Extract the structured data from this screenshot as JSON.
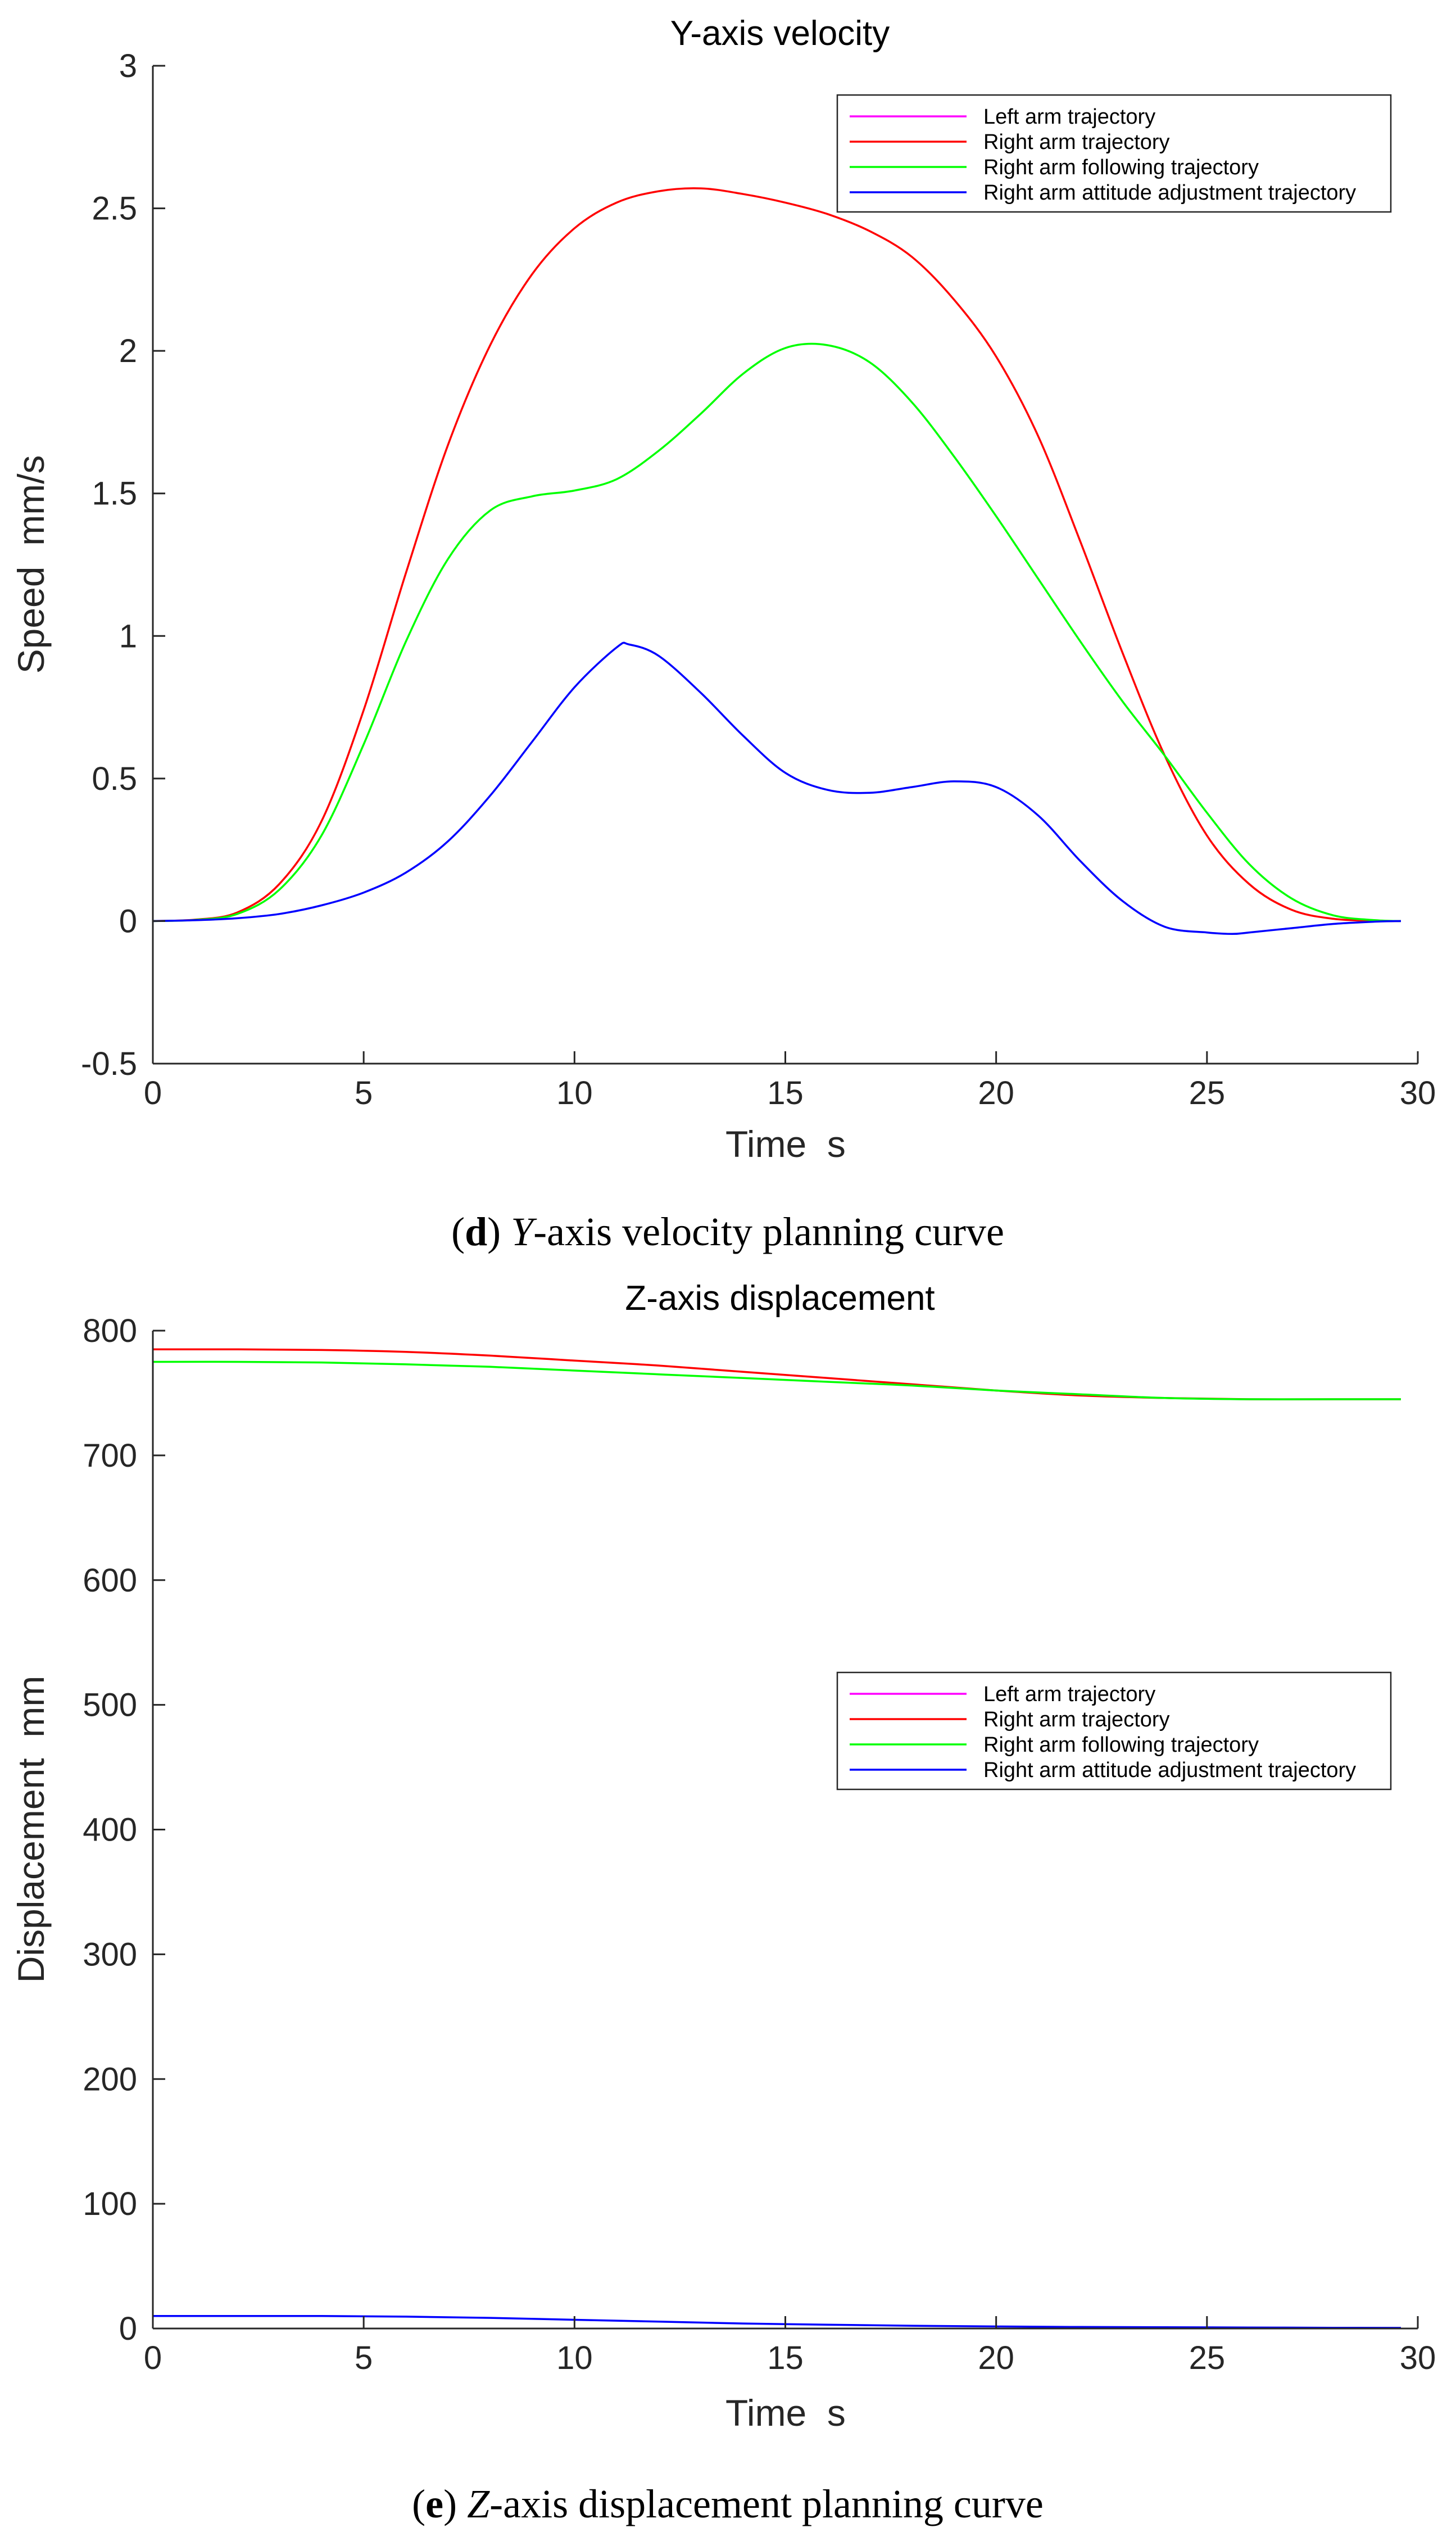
{
  "chart_data": [
    {
      "type": "line",
      "title": "Y-axis velocity",
      "xlabel": "Time  s",
      "ylabel": "Speed  mm/s",
      "xlim": [
        0,
        30
      ],
      "ylim": [
        -0.5,
        3
      ],
      "xticks": [
        "0",
        "5",
        "10",
        "15",
        "20",
        "25",
        "30"
      ],
      "yticks": [
        "-0.5",
        "0",
        "0.5",
        "1",
        "1.5",
        "2",
        "2.5",
        "3"
      ],
      "grid": false,
      "legend_position": "top-right",
      "caption": {
        "letter": "d",
        "axis": "Y",
        "text": "-axis velocity planning curve"
      },
      "series": [
        {
          "name": "Left arm trajectory",
          "color": "#ff00ff",
          "x": [],
          "y": []
        },
        {
          "name": "Right arm trajectory",
          "color": "#ff0000",
          "x": [
            0,
            1,
            2,
            3,
            4,
            5,
            6,
            7,
            8,
            9,
            10,
            11,
            12,
            13,
            14,
            15,
            16,
            17,
            18,
            19,
            20,
            21,
            22,
            23,
            24,
            25,
            26,
            27,
            28,
            29,
            29.6
          ],
          "y": [
            0,
            0.005,
            0.03,
            0.13,
            0.35,
            0.74,
            1.22,
            1.67,
            2.02,
            2.27,
            2.43,
            2.52,
            2.56,
            2.57,
            2.55,
            2.52,
            2.48,
            2.42,
            2.33,
            2.18,
            1.98,
            1.7,
            1.33,
            0.94,
            0.58,
            0.3,
            0.13,
            0.04,
            0.008,
            0.001,
            0
          ]
        },
        {
          "name": "Right arm following trajectory",
          "color": "#00ff00",
          "x": [
            0,
            1,
            2,
            3,
            4,
            5,
            6,
            7,
            8,
            9,
            10,
            11,
            12,
            13,
            14,
            15,
            16,
            17,
            18,
            19,
            20,
            21,
            22,
            23,
            24,
            25,
            26,
            27,
            28,
            29,
            29.6
          ],
          "y": [
            0,
            0.004,
            0.025,
            0.11,
            0.3,
            0.62,
            0.98,
            1.27,
            1.44,
            1.49,
            1.51,
            1.55,
            1.65,
            1.78,
            1.92,
            2.01,
            2.02,
            1.96,
            1.82,
            1.63,
            1.42,
            1.2,
            0.98,
            0.77,
            0.58,
            0.38,
            0.2,
            0.08,
            0.02,
            0.003,
            0
          ]
        },
        {
          "name": "Right arm attitude adjustment trajectory",
          "color": "#0000ff",
          "x": [
            0,
            1,
            2,
            3,
            4,
            5,
            6,
            7,
            8,
            9,
            10,
            11,
            11.3,
            12,
            13,
            14,
            15,
            16,
            17,
            18,
            19,
            20,
            21,
            22,
            23,
            24,
            25,
            25.6,
            26,
            27,
            28,
            29,
            29.6
          ],
          "y": [
            0,
            0.003,
            0.01,
            0.025,
            0.055,
            0.1,
            0.17,
            0.28,
            0.44,
            0.63,
            0.82,
            0.96,
            0.97,
            0.93,
            0.8,
            0.65,
            0.52,
            0.46,
            0.45,
            0.47,
            0.49,
            0.47,
            0.37,
            0.21,
            0.07,
            -0.02,
            -0.04,
            -0.045,
            -0.04,
            -0.025,
            -0.01,
            -0.002,
            0
          ]
        }
      ]
    },
    {
      "type": "line",
      "title": "Z-axis displacement",
      "xlabel": "Time  s",
      "ylabel": "Displacement  mm",
      "xlim": [
        0,
        30
      ],
      "ylim": [
        0,
        800
      ],
      "xticks": [
        "0",
        "5",
        "10",
        "15",
        "20",
        "25",
        "30"
      ],
      "yticks": [
        "0",
        "100",
        "200",
        "300",
        "400",
        "500",
        "600",
        "700",
        "800"
      ],
      "grid": false,
      "legend_position": "center-right",
      "caption": {
        "letter": "e",
        "axis": "Z",
        "text": "-axis displacement planning curve"
      },
      "series": [
        {
          "name": "Left arm trajectory",
          "color": "#ff00ff",
          "x": [],
          "y": []
        },
        {
          "name": "Right arm trajectory",
          "color": "#ff0000",
          "x": [
            0,
            2,
            4,
            6,
            8,
            10,
            12,
            14,
            16,
            18,
            20,
            22,
            24,
            26,
            28,
            29.6
          ],
          "y": [
            785,
            785,
            784.5,
            783,
            780,
            776,
            772,
            767,
            762,
            757,
            752,
            748,
            746,
            745,
            745,
            745
          ]
        },
        {
          "name": "Right arm following trajectory",
          "color": "#00ff00",
          "x": [
            0,
            2,
            4,
            6,
            8,
            10,
            12,
            14,
            16,
            18,
            20,
            22,
            24,
            26,
            28,
            29.6
          ],
          "y": [
            775,
            775,
            774.5,
            773,
            771,
            768,
            765,
            762,
            759,
            756,
            752,
            749,
            746,
            745,
            745,
            745
          ]
        },
        {
          "name": "Right arm attitude adjustment trajectory",
          "color": "#0000ff",
          "x": [
            0,
            2,
            4,
            6,
            8,
            10,
            12,
            14,
            16,
            18,
            20,
            22,
            24,
            26,
            28,
            29.6
          ],
          "y": [
            10,
            10,
            10,
            9.5,
            8.5,
            7,
            5.5,
            4,
            3,
            2.2,
            1.6,
            1.2,
            1,
            0.8,
            0.6,
            0.5
          ]
        }
      ]
    }
  ]
}
